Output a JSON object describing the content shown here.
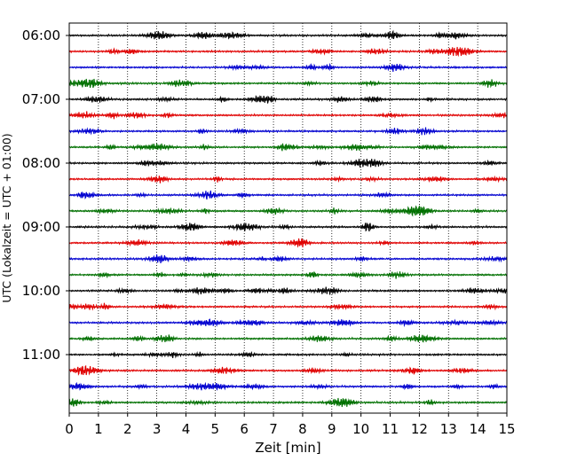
{
  "chart_data": {
    "type": "line",
    "title": "",
    "xlabel": "Zeit  [min]",
    "ylabel": "UTC (Lokalzeit = UTC + 01:00)",
    "xlim": [
      0,
      15
    ],
    "x_ticks": [
      "0",
      "1",
      "2",
      "3",
      "4",
      "5",
      "6",
      "7",
      "8",
      "9",
      "10",
      "11",
      "12",
      "13",
      "14",
      "15"
    ],
    "y_ticks": [
      "06:00",
      "07:00",
      "08:00",
      "09:00",
      "10:00",
      "11:00"
    ],
    "grid": "vertical dotted",
    "trace_interval_minutes": 15,
    "trace_colors": [
      "#000000",
      "#e00000",
      "#0000d0",
      "#007000"
    ],
    "traces": [
      {
        "start": "06:00",
        "color": "#000000"
      },
      {
        "start": "06:15",
        "color": "#e00000"
      },
      {
        "start": "06:30",
        "color": "#0000d0"
      },
      {
        "start": "06:45",
        "color": "#007000"
      },
      {
        "start": "07:00",
        "color": "#000000"
      },
      {
        "start": "07:15",
        "color": "#e00000"
      },
      {
        "start": "07:30",
        "color": "#0000d0"
      },
      {
        "start": "07:45",
        "color": "#007000"
      },
      {
        "start": "08:00",
        "color": "#000000"
      },
      {
        "start": "08:15",
        "color": "#e00000"
      },
      {
        "start": "08:30",
        "color": "#0000d0"
      },
      {
        "start": "08:45",
        "color": "#007000"
      },
      {
        "start": "09:00",
        "color": "#000000"
      },
      {
        "start": "09:15",
        "color": "#e00000"
      },
      {
        "start": "09:30",
        "color": "#0000d0"
      },
      {
        "start": "09:45",
        "color": "#007000"
      },
      {
        "start": "10:00",
        "color": "#000000"
      },
      {
        "start": "10:15",
        "color": "#e00000"
      },
      {
        "start": "10:30",
        "color": "#0000d0"
      },
      {
        "start": "10:45",
        "color": "#007000"
      },
      {
        "start": "11:00",
        "color": "#000000"
      },
      {
        "start": "11:15",
        "color": "#e00000"
      },
      {
        "start": "11:30",
        "color": "#0000d0"
      },
      {
        "start": "11:45",
        "color": "#007000"
      }
    ]
  }
}
